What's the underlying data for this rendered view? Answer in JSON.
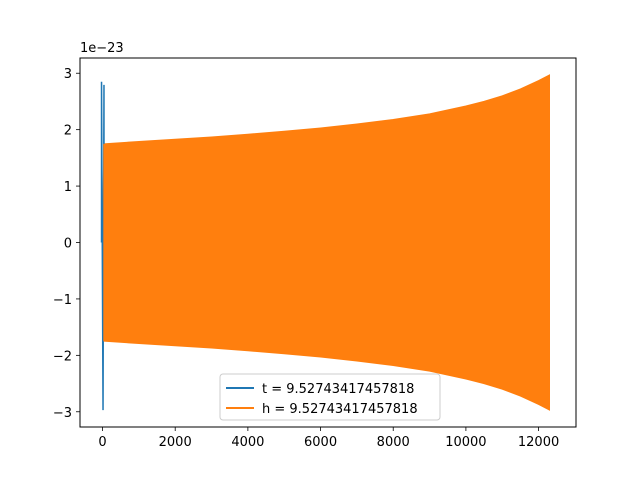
{
  "chart_data": {
    "type": "line",
    "title": "",
    "xlabel": "",
    "ylabel": "",
    "offset_text": "1e−23",
    "xlim": [
      -620,
      13030
    ],
    "ylim": [
      -3.27,
      3.27
    ],
    "x_ticks": [
      0,
      2000,
      4000,
      6000,
      8000,
      10000,
      12000
    ],
    "x_tick_labels": [
      "0",
      "2000",
      "4000",
      "6000",
      "8000",
      "10000",
      "12000"
    ],
    "y_ticks": [
      -3,
      -2,
      -1,
      0,
      1,
      2,
      3
    ],
    "y_tick_labels": [
      "−3",
      "−2",
      "−1",
      "0",
      "1",
      "2",
      "3"
    ],
    "grid": false,
    "legend_position": "lower-center",
    "series": [
      {
        "name": "t = 9.52743417457818",
        "color": "#1f77b4",
        "x_range": [
          0,
          40
        ],
        "peak_top": 2.85,
        "peak_bottom": -2.97
      },
      {
        "name": "h = 9.52743417457818",
        "color": "#ff7f0e",
        "x_range": [
          0,
          12300
        ],
        "envelope": {
          "x": [
            0,
            40,
            1000,
            2000,
            3000,
            4000,
            5000,
            6000,
            7000,
            8000,
            9000,
            10000,
            10500,
            11000,
            11500,
            12000,
            12300
          ],
          "upper": [
            0.3,
            1.75,
            1.79,
            1.83,
            1.87,
            1.92,
            1.97,
            2.03,
            2.1,
            2.18,
            2.28,
            2.42,
            2.5,
            2.6,
            2.72,
            2.87,
            2.97
          ],
          "lower": [
            -0.3,
            -1.75,
            -1.79,
            -1.83,
            -1.87,
            -1.92,
            -1.97,
            -2.03,
            -2.1,
            -2.18,
            -2.28,
            -2.42,
            -2.5,
            -2.6,
            -2.72,
            -2.87,
            -2.97
          ]
        }
      }
    ]
  }
}
